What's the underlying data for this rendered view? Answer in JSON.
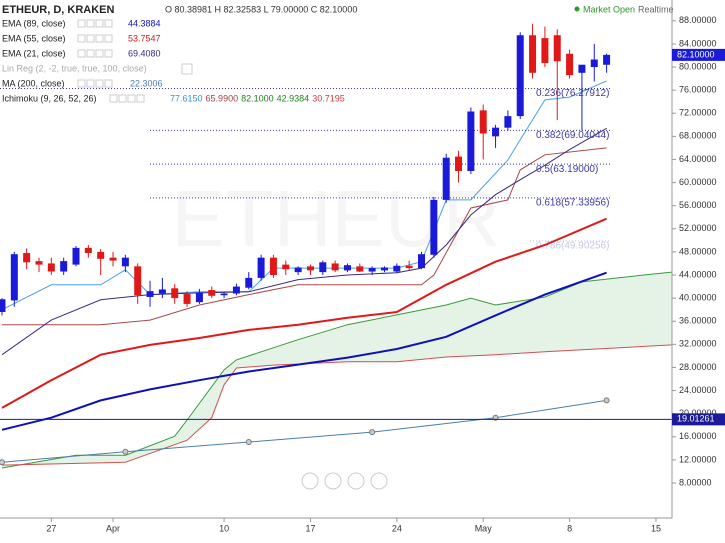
{
  "chart_data": {
    "type": "candlestick",
    "title": "ETHEUR, D, KRAKEN",
    "ohlc_label": "O 80.38981 H 82.32583 L 79.00000 C 82.10000",
    "status": "Market Open",
    "feed": "Realtime",
    "watermark": "ETHEUR",
    "up_color": "#1a1ad8",
    "down_color": "#e01818",
    "x": [
      0,
      1,
      2,
      3,
      4,
      5,
      6,
      7,
      8,
      9,
      10,
      11,
      12,
      13,
      14,
      15,
      16,
      17,
      18,
      19,
      20,
      21,
      22,
      23,
      24,
      25,
      26,
      27,
      28,
      29,
      30,
      31,
      32,
      33,
      34,
      35,
      36,
      37,
      38,
      39,
      40,
      41,
      42,
      43,
      44,
      45,
      46,
      47,
      48,
      49
    ],
    "open": [
      37.6,
      39.6,
      47.8,
      46.4,
      46,
      44.6,
      45.8,
      48.7,
      48,
      47,
      45.5,
      45.5,
      40.2,
      40.8,
      41.7,
      40.7,
      39.3,
      41.4,
      40.5,
      40.8,
      41.8,
      43.5,
      47,
      45.8,
      44.5,
      45.5,
      44.5,
      46,
      44.8,
      45.5,
      44.6,
      44.8,
      44.6,
      45.6,
      45.2,
      47.5,
      57,
      64.5,
      62,
      72.5,
      68,
      69.5,
      71.5,
      85.5,
      85,
      85.5,
      82.3,
      79,
      80,
      80.38981
    ],
    "high": [
      40,
      48,
      48.6,
      47,
      47,
      47,
      49,
      49.2,
      48.5,
      48,
      47.5,
      46,
      43,
      43.5,
      42.4,
      41.2,
      41.6,
      42,
      41,
      42.5,
      44.5,
      47.5,
      47.5,
      46.5,
      45.5,
      45.8,
      46.5,
      46.5,
      46,
      46,
      45.5,
      45.5,
      46,
      46.5,
      48,
      57.5,
      65,
      65.5,
      73,
      73.5,
      70,
      72.5,
      86,
      87.5,
      87,
      86.5,
      83,
      80,
      84,
      82.32583
    ],
    "low": [
      37,
      38.5,
      45,
      44.5,
      44,
      44,
      45.5,
      47,
      44,
      45.5,
      44.5,
      39,
      38.5,
      40,
      39,
      38.5,
      39,
      40,
      40,
      40.5,
      41.5,
      43,
      43.5,
      44,
      44,
      44,
      44,
      44.5,
      44.5,
      44.5,
      44,
      44.5,
      44.3,
      44.8,
      45,
      47,
      56.5,
      60,
      61.5,
      64,
      66,
      69,
      71,
      78,
      80,
      70.8,
      78,
      69,
      77.5,
      79
    ],
    "close": [
      39.8,
      47.6,
      46.2,
      45.8,
      44.6,
      46.4,
      48.7,
      47.8,
      46.8,
      46.5,
      47,
      40.5,
      41.2,
      41.5,
      40,
      39,
      41,
      40.4,
      40.8,
      42,
      43.5,
      47,
      44,
      45,
      45.3,
      44.8,
      46.2,
      44.8,
      45.7,
      44.6,
      45.2,
      45.3,
      45.6,
      45.2,
      47.6,
      57,
      64.3,
      62,
      72.3,
      68.5,
      69.5,
      71.5,
      85.5,
      79,
      80.7,
      81,
      78.6,
      80.4,
      81.3,
      82.1
    ],
    "series": [
      {
        "name": "EMA (89, close)",
        "color": "#1010b8",
        "width": 2,
        "legend_value": "44.3884",
        "x": [
          0,
          4,
          8,
          12,
          16,
          20,
          24,
          28,
          32,
          36,
          40,
          44,
          49
        ],
        "values": [
          17.2,
          19.3,
          22.3,
          24.2,
          25.8,
          27.3,
          28.5,
          29.7,
          31.2,
          33.3,
          37,
          40.6,
          44.4
        ]
      },
      {
        "name": "EMA (55, close)",
        "color": "#e01818",
        "width": 2,
        "legend_value": "53.7547",
        "x": [
          0,
          4,
          8,
          12,
          16,
          20,
          24,
          28,
          32,
          36,
          40,
          44,
          49
        ],
        "values": [
          21,
          25.8,
          30.2,
          31.9,
          33.1,
          34.5,
          35.4,
          36.6,
          37.6,
          42.3,
          46.3,
          49.2,
          53.75
        ]
      },
      {
        "name": "EMA (21, close)",
        "color": "#3a2a80",
        "width": 1,
        "legend_value": "69.4080",
        "x": [
          0,
          4,
          8,
          12,
          16,
          20,
          24,
          28,
          32,
          34,
          36,
          38,
          40,
          42,
          44,
          46,
          49
        ],
        "values": [
          30.2,
          36.2,
          39.7,
          40.6,
          40.9,
          41.1,
          43.2,
          44,
          44.4,
          45.2,
          49.2,
          54.4,
          57.9,
          60.5,
          63,
          65.7,
          69.4
        ]
      },
      {
        "name": "MA (200, close)",
        "color": "#4a7fa8",
        "width": 1,
        "markers": true,
        "legend_value": "22.3006",
        "x": [
          0,
          10,
          20,
          30,
          40,
          49
        ],
        "values": [
          11.6,
          13.4,
          15.1,
          16.8,
          19.3,
          22.3
        ]
      }
    ],
    "disabled_indicator": "Lin Reg (2, -2, true, true, 100, close)",
    "ichimoku": {
      "name": "Ichimoku (9, 26, 52, 26)",
      "legend_values": [
        "77.6150",
        "65.9900",
        "82.1000",
        "42.9384",
        "30.7195"
      ],
      "legend_colors": [
        "#3c8fd8",
        "#a04040",
        "#208020",
        "#208020",
        "#d04040"
      ],
      "conversion": {
        "color": "#4aa0e8",
        "x": [
          0,
          4,
          8,
          10,
          12,
          16,
          20,
          22,
          32,
          34,
          36,
          38,
          41,
          42,
          44,
          46,
          49
        ],
        "values": [
          38,
          42.3,
          42.3,
          44.9,
          40.6,
          41.1,
          41.1,
          45.2,
          45.2,
          46.3,
          57,
          57,
          63.9,
          67.4,
          74.3,
          74.8,
          77.6
        ]
      },
      "base": {
        "color": "#a84848",
        "x": [
          0,
          8,
          12,
          16,
          20,
          24,
          34,
          35,
          38,
          41,
          42,
          44,
          49
        ],
        "values": [
          35.4,
          35.4,
          36.2,
          38.8,
          40.6,
          42.3,
          42.3,
          44,
          55.6,
          57,
          62.2,
          64.8,
          66
        ]
      },
      "span_a": {
        "color": "#3a9a3a",
        "x": [
          0,
          6,
          10,
          14,
          15,
          18,
          19,
          24,
          28,
          32,
          36,
          38,
          40,
          44,
          47,
          52,
          54.3
        ],
        "values": [
          10.6,
          12.8,
          12.8,
          16.1,
          18.9,
          27.6,
          29.3,
          32.8,
          35.4,
          37.1,
          38.8,
          40,
          38.8,
          40.2,
          42.8,
          44,
          44.5
        ]
      },
      "span_b": {
        "color": "#d05050",
        "x": [
          0,
          10,
          15,
          17,
          18,
          19,
          22,
          28,
          32,
          36,
          40,
          44,
          54.3
        ],
        "values": [
          11.1,
          11.6,
          15.4,
          19.3,
          25,
          27.9,
          28.4,
          29,
          29,
          29.8,
          30.2,
          30.7,
          31.9
        ]
      },
      "cloud_color": "#4caf50"
    },
    "fib": {
      "color": "#3a3aa8",
      "values": [
        76.27912,
        69.04044,
        63.19,
        57.33956,
        49.90256
      ],
      "value_labels": [
        "0.236(76.27912)",
        "0.382(69.04044)",
        "0.5(63.19000)",
        "0.618(57.33956)",
        "0.786(49.90256)"
      ]
    },
    "price_line": {
      "value": 19.01261,
      "label": "19.01261",
      "color": "#1a1a9a"
    },
    "last_price": {
      "value": 82.1,
      "label": "82.10000",
      "color": "#1a1ad8"
    },
    "grid": false,
    "xlim": [
      -0.16,
      54.3
    ],
    "xticks": [
      {
        "value": 4,
        "label": "27"
      },
      {
        "value": 9,
        "label": "Apr"
      },
      {
        "value": 18,
        "label": "10"
      },
      {
        "value": 25,
        "label": "17"
      },
      {
        "value": 32,
        "label": "24"
      },
      {
        "value": 39,
        "label": "May"
      },
      {
        "value": 46,
        "label": "8"
      },
      {
        "value": 53,
        "label": "15"
      }
    ],
    "ylim": [
      1.94,
      91.6
    ],
    "yticks": [
      {
        "value": 8,
        "label": "8.00000"
      },
      {
        "value": 12,
        "label": "12.00000"
      },
      {
        "value": 16,
        "label": "16.00000"
      },
      {
        "value": 20,
        "label": "20.00000"
      },
      {
        "value": 24,
        "label": "24.00000"
      },
      {
        "value": 28,
        "label": "28.00000"
      },
      {
        "value": 32,
        "label": "32.00000"
      },
      {
        "value": 36,
        "label": "36.00000"
      },
      {
        "value": 40,
        "label": "40.00000"
      },
      {
        "value": 44,
        "label": "44.00000"
      },
      {
        "value": 48,
        "label": "48.00000"
      },
      {
        "value": 52,
        "label": "52.00000"
      },
      {
        "value": 56,
        "label": "56.00000"
      },
      {
        "value": 60,
        "label": "60.00000"
      },
      {
        "value": 64,
        "label": "64.00000"
      },
      {
        "value": 68,
        "label": "68.00000"
      },
      {
        "value": 72,
        "label": "72.00000"
      },
      {
        "value": 76,
        "label": "76.00000"
      },
      {
        "value": 80,
        "label": "80.00000"
      },
      {
        "value": 84,
        "label": "84.00000"
      },
      {
        "value": 88,
        "label": "88.00000"
      }
    ]
  }
}
